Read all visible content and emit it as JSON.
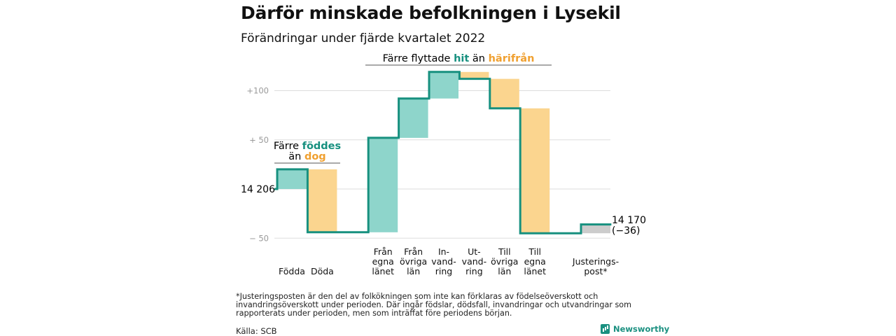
{
  "title": "Därför minskade befolkningen i Lysekil",
  "subtitle": "Förändringar under fjärde kvartalet 2022",
  "annotations": {
    "births": {
      "line1": "Färre ",
      "line1_hl": "föddes",
      "line2": "än ",
      "line2_hl": "dog"
    },
    "migration": {
      "pre": "Färre flyttade ",
      "hl1": "hit",
      "mid": " än ",
      "hl2": "härifrån"
    }
  },
  "start_label": "14 206",
  "end_label_1": "14 170",
  "end_label_2": "(−36)",
  "colors": {
    "positive": "#8ed5cb",
    "negative": "#fbd58f",
    "adjustment": "#cccccc",
    "line": "#17907f",
    "teal_text": "#17907f",
    "orange_text": "#f0a030"
  },
  "chart_data": {
    "type": "waterfall",
    "start": 14206,
    "end": 14170,
    "y_ticks": [
      {
        "value": 100,
        "label": "+100"
      },
      {
        "value": 50,
        "label": "+ 50"
      },
      {
        "value": 0,
        "label": ""
      },
      {
        "value": -50,
        "label": "− 50"
      }
    ],
    "ylim": [
      -50,
      120
    ],
    "steps": [
      {
        "label": [
          "Födda"
        ],
        "value": 20,
        "kind": "positive"
      },
      {
        "label": [
          "Döda"
        ],
        "value": -64,
        "kind": "negative"
      },
      {
        "label": [],
        "value": 0,
        "kind": "none"
      },
      {
        "label": [
          "Från",
          "egna",
          "länet"
        ],
        "value": 96,
        "kind": "positive"
      },
      {
        "label": [
          "Från",
          "övriga",
          "län"
        ],
        "value": 40,
        "kind": "positive"
      },
      {
        "label": [
          "In-",
          "vand-",
          "ring"
        ],
        "value": 27,
        "kind": "positive"
      },
      {
        "label": [
          "Ut-",
          "vand-",
          "ring"
        ],
        "value": -7,
        "kind": "negative"
      },
      {
        "label": [
          "Till",
          "övriga",
          "län"
        ],
        "value": -30,
        "kind": "negative"
      },
      {
        "label": [
          "Till",
          "egna",
          "länet"
        ],
        "value": -127,
        "kind": "negative"
      },
      {
        "label": [],
        "value": 0,
        "kind": "none"
      },
      {
        "label": [
          "Justerings-",
          "post*"
        ],
        "value": 9,
        "kind": "adjustment"
      }
    ]
  },
  "footnote": "*Justeringsposten är den del av folkökningen som inte kan förklaras av födelseöverskott och invandringsöverskott under perioden. Där ingår födslar, dödsfall, invandringar och utvandringar som rapporterats under perioden, men som inträffat före periodens början.",
  "source": "Källa: SCB",
  "brand": "Newsworthy"
}
